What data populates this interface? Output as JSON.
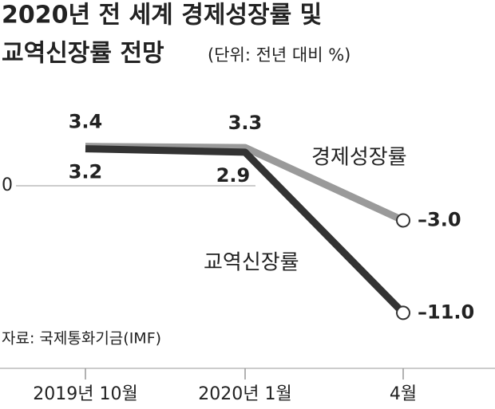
{
  "chart_data": {
    "type": "line",
    "title": "2020년 전 세계 경제성장률 및",
    "title_line2": "교역신장률 전망",
    "unit": "(단위: 전년 대비 %)",
    "source": "자료: 국제통화기금(IMF)",
    "categories": [
      "2019년 10월",
      "2020년 1월",
      "4월"
    ],
    "series": [
      {
        "name": "경제성장률",
        "color": "#9a9a9a",
        "values": [
          3.4,
          3.3,
          -3.0
        ],
        "value_labels": [
          "3.4",
          "3.3",
          "–3.0"
        ]
      },
      {
        "name": "교역신장률",
        "color": "#333333",
        "values": [
          3.2,
          2.9,
          -11.0
        ],
        "value_labels": [
          "3.2",
          "2.9",
          "–11.0"
        ]
      }
    ],
    "ylim": [
      -15.8,
      8
    ],
    "yticks": [
      0
    ]
  }
}
